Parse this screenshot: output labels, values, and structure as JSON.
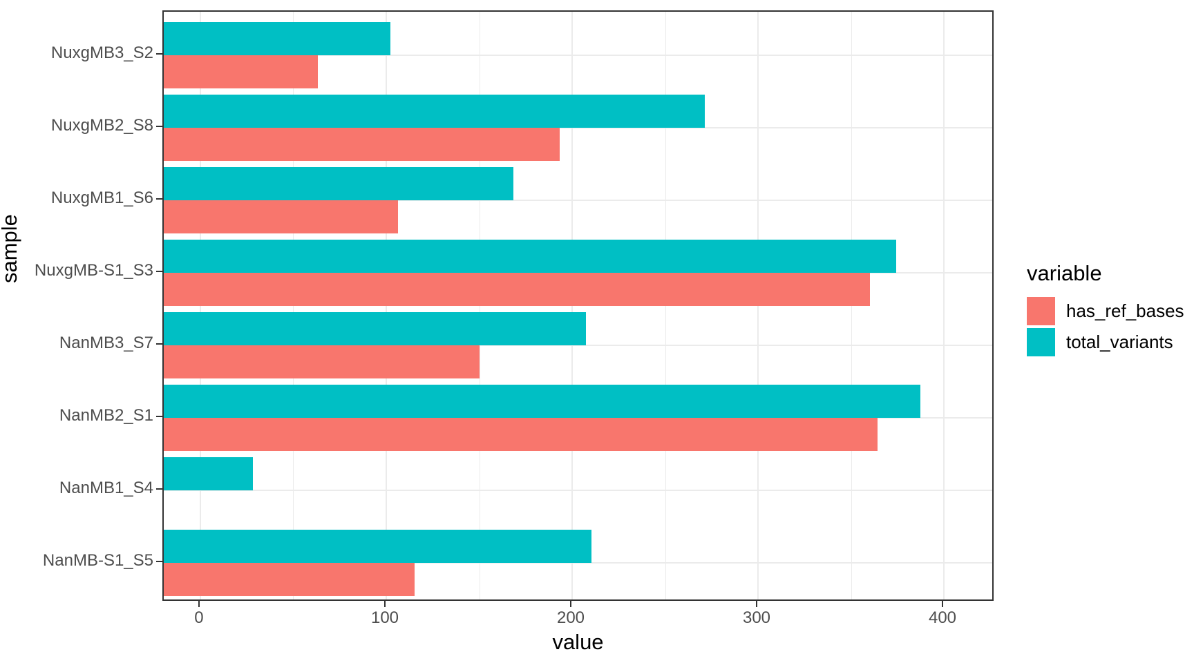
{
  "figure": {
    "background": "#FFFFFF",
    "panel_border_color": "#333333",
    "grid_color": "#EBEBEB",
    "tick_label_color": "#4D4D4D",
    "title_color": "#000000"
  },
  "chart_data": {
    "type": "bar",
    "orientation": "horizontal",
    "title": "",
    "xlabel": "value",
    "ylabel": "sample",
    "categories": [
      "NuxgMB3_S2",
      "NuxgMB2_S8",
      "NuxgMB1_S6",
      "NuxgMB-S1_S3",
      "NanMB3_S7",
      "NanMB2_S1",
      "NanMB1_S4",
      "NanMB-S1_S5"
    ],
    "series": [
      {
        "name": "has_ref_bases",
        "color": "#F8766D",
        "values": [
          83,
          213,
          126,
          380,
          170,
          384,
          0,
          135
        ]
      },
      {
        "name": "total_variants",
        "color": "#00BFC4",
        "values": [
          122,
          291,
          188,
          394,
          227,
          407,
          48,
          230
        ]
      }
    ],
    "x_ticks": [
      0,
      100,
      200,
      300,
      400
    ],
    "x_minor_ticks": [
      50,
      150,
      250,
      350
    ],
    "xlim": [
      -19.7,
      427.5
    ],
    "grid": true,
    "legend": {
      "title": "variable",
      "position": "right"
    }
  }
}
